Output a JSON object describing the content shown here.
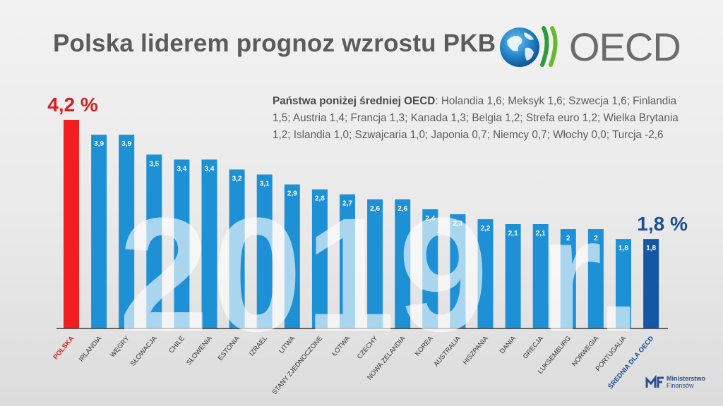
{
  "title": "Polska liderem prognoz wzrostu PKB",
  "logo": {
    "name": "OECD",
    "icon": "globe-icon",
    "color": "#6b6b6b"
  },
  "note": {
    "label": "Państwa poniżej średniej OECD",
    "text": ": Holandia 1,6; Meksyk 1,6; Szwecja 1,6; Finlandia 1,5; Austria 1,4; Francja 1,3; Kanada 1,3; Belgia 1,2; Strefa euro 1,2; Wielka Brytania 1,2; Islandia 1,0; Szwajcaria 1,0; Japonia 0,7; Niemcy 0,7; Włochy 0,0; Turcja -2,6"
  },
  "watermark": "2019 r.",
  "ministry": {
    "line1": "Ministerstwo",
    "line2": "Finansów",
    "color": "#2a4c8a"
  },
  "colors": {
    "poland": "#f01e1e",
    "bar": "#1e90d6",
    "average": "#1557a6",
    "poland_text": "#d81e1e",
    "average_text": "#1d4f96",
    "axis": "#3a3a3a"
  },
  "chart_data": {
    "type": "bar",
    "categories": [
      "POLSKA",
      "IRLANDIA",
      "WĘGRY",
      "SŁOWACJA",
      "CHILE",
      "SŁOWENIA",
      "ESTONIA",
      "IZRAEL",
      "LITWA",
      "STANY ZJEDNOCZONE",
      "ŁOTWA",
      "CZECHY",
      "NOWA ZELANDIA",
      "KOREA",
      "AUSTRALIA",
      "HISZPANIA",
      "DANIA",
      "GRECJA",
      "LUKSEMBURG",
      "NORWEGIA",
      "PORTUGALIA",
      "ŚREDNIA DLA OECD"
    ],
    "values": [
      4.2,
      3.9,
      3.9,
      3.5,
      3.4,
      3.4,
      3.2,
      3.1,
      2.9,
      2.8,
      2.7,
      2.6,
      2.6,
      2.4,
      2.3,
      2.2,
      2.1,
      2.1,
      2.0,
      2.0,
      1.8,
      1.8
    ],
    "value_labels": [
      "4,2 %",
      "3,9",
      "3,9",
      "3,5",
      "3,4",
      "3,4",
      "3,2",
      "3,1",
      "2,9",
      "2,8",
      "2,7",
      "2,6",
      "2,6",
      "2,4",
      "2,3",
      "2,2",
      "2,1",
      "2,1",
      "2",
      "2",
      "1,8",
      "1,8"
    ],
    "highlight_labels": {
      "first": "4,2 %",
      "last": "1,8 %"
    },
    "ylim": [
      0,
      4.2
    ]
  }
}
